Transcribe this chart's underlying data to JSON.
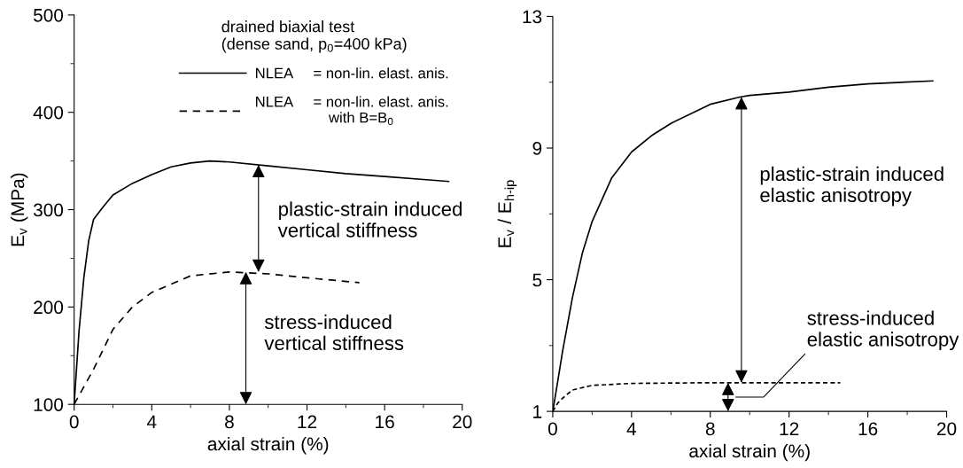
{
  "chart_data": [
    {
      "type": "line",
      "xlabel": "axial strain (%)",
      "ylabel": "E$_{v}$ (MPa)",
      "legend_title": "drained biaxial test\n(dense sand, p$_{0}$=400 kPa)",
      "legend": "top right",
      "xlim": [
        0,
        20
      ],
      "ylim": [
        100,
        500
      ],
      "xticks": [
        0,
        4,
        8,
        12,
        16,
        20
      ],
      "yticks": [
        100,
        200,
        300,
        400,
        500
      ],
      "grid": false,
      "marker": "none",
      "series": [
        {
          "name": "NLEA     = non-lin. elast. anis.",
          "color": "#000000",
          "line_style": "solid",
          "x": [
            0,
            0.25,
            0.5,
            0.75,
            1,
            1.5,
            2,
            3,
            4,
            5,
            6,
            7,
            8,
            10,
            12,
            14,
            16,
            18,
            19.3
          ],
          "values": [
            100,
            175,
            230,
            268,
            290,
            303,
            315,
            327,
            336,
            344,
            348,
            350,
            349,
            345,
            341,
            337,
            334,
            331,
            329
          ]
        },
        {
          "name": "NLEA     = non-lin. elast. anis.\n                  with B=B$_{0}$",
          "color": "#000000",
          "line_style": "dashed",
          "x": [
            0,
            0.5,
            1,
            2,
            3,
            4,
            6,
            8,
            10,
            12,
            14.7
          ],
          "values": [
            100,
            118,
            136,
            177,
            200,
            215,
            232,
            236,
            234,
            230,
            225
          ]
        }
      ],
      "annotations": [
        "plastic-strain induced\nvertical stiffness",
        "stress-induced\nvertical stiffness"
      ]
    },
    {
      "type": "line",
      "xlabel": "axial strain (%)",
      "ylabel": "E$_{v}$ / E$_{h‐ip}$",
      "legend": false,
      "xlim": [
        0,
        20
      ],
      "ylim": [
        1,
        13
      ],
      "xticks": [
        0,
        4,
        8,
        12,
        16,
        20
      ],
      "yticks": [
        1,
        5,
        9,
        13
      ],
      "grid": false,
      "marker": "none",
      "series": [
        {
          "color": "#000000",
          "line_style": "solid",
          "x": [
            0,
            0.25,
            0.5,
            1,
            1.5,
            2,
            3,
            4,
            5,
            6,
            8,
            9.5,
            10,
            12,
            14,
            16,
            19.3
          ],
          "values": [
            1,
            1.9,
            2.83,
            4.46,
            5.8,
            6.77,
            8.1,
            8.88,
            9.37,
            9.75,
            10.33,
            10.55,
            10.6,
            10.7,
            10.85,
            10.95,
            11.04
          ]
        },
        {
          "color": "#000000",
          "line_style": "dotted",
          "x": [
            0,
            0.25,
            0.5,
            1,
            2,
            4,
            8,
            14.6
          ],
          "values": [
            1,
            1.25,
            1.4,
            1.65,
            1.79,
            1.85,
            1.87,
            1.87
          ]
        }
      ],
      "annotations": [
        "plastic-strain induced\nelastic anisotropy",
        "stress-induced\nelastic anisotropy"
      ]
    }
  ]
}
